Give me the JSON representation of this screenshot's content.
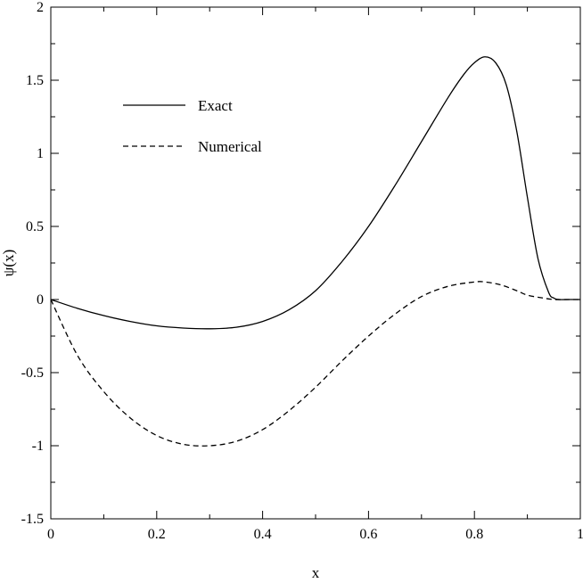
{
  "chart_data": {
    "type": "line",
    "title": "",
    "xlabel": "x",
    "ylabel": "ψ(x)",
    "xlim": [
      0,
      1
    ],
    "ylim": [
      -1.5,
      2
    ],
    "xticks": [
      0,
      0.2,
      0.4,
      0.6,
      0.8,
      1
    ],
    "xtick_labels": [
      "0",
      "0.2",
      "0.4",
      "0.6",
      "0.8",
      "1"
    ],
    "yticks": [
      -1.5,
      -1,
      -0.5,
      0,
      0.5,
      1,
      1.5,
      2
    ],
    "ytick_labels": [
      "-1.5",
      "-1",
      "-0.5",
      "0",
      "0.5",
      "1",
      "1.5",
      "2"
    ],
    "grid": false,
    "legend_position": "top-left",
    "series": [
      {
        "name": "Exact",
        "style": "solid",
        "color": "#000000",
        "x": [
          0,
          0.05,
          0.1,
          0.15,
          0.2,
          0.25,
          0.3,
          0.35,
          0.4,
          0.45,
          0.5,
          0.55,
          0.6,
          0.65,
          0.7,
          0.75,
          0.78,
          0.8,
          0.82,
          0.84,
          0.86,
          0.88,
          0.9,
          0.92,
          0.94,
          0.95,
          0.96,
          0.98,
          1
        ],
        "y": [
          0,
          -0.06,
          -0.11,
          -0.15,
          -0.18,
          -0.195,
          -0.2,
          -0.19,
          -0.15,
          -0.07,
          0.06,
          0.26,
          0.5,
          0.78,
          1.08,
          1.38,
          1.54,
          1.62,
          1.66,
          1.62,
          1.47,
          1.15,
          0.7,
          0.28,
          0.05,
          0.01,
          0,
          0,
          0
        ]
      },
      {
        "name": "Numerical",
        "style": "dashed",
        "color": "#000000",
        "x": [
          0,
          0.05,
          0.1,
          0.15,
          0.2,
          0.25,
          0.3,
          0.35,
          0.4,
          0.45,
          0.5,
          0.55,
          0.6,
          0.65,
          0.7,
          0.75,
          0.8,
          0.82,
          0.85,
          0.88,
          0.9,
          0.93,
          0.95,
          0.97,
          1
        ],
        "y": [
          0,
          -0.38,
          -0.63,
          -0.81,
          -0.93,
          -0.99,
          -1.0,
          -0.97,
          -0.89,
          -0.76,
          -0.6,
          -0.42,
          -0.25,
          -0.1,
          0.02,
          0.09,
          0.12,
          0.12,
          0.1,
          0.06,
          0.03,
          0.01,
          0,
          0,
          0
        ]
      }
    ]
  }
}
